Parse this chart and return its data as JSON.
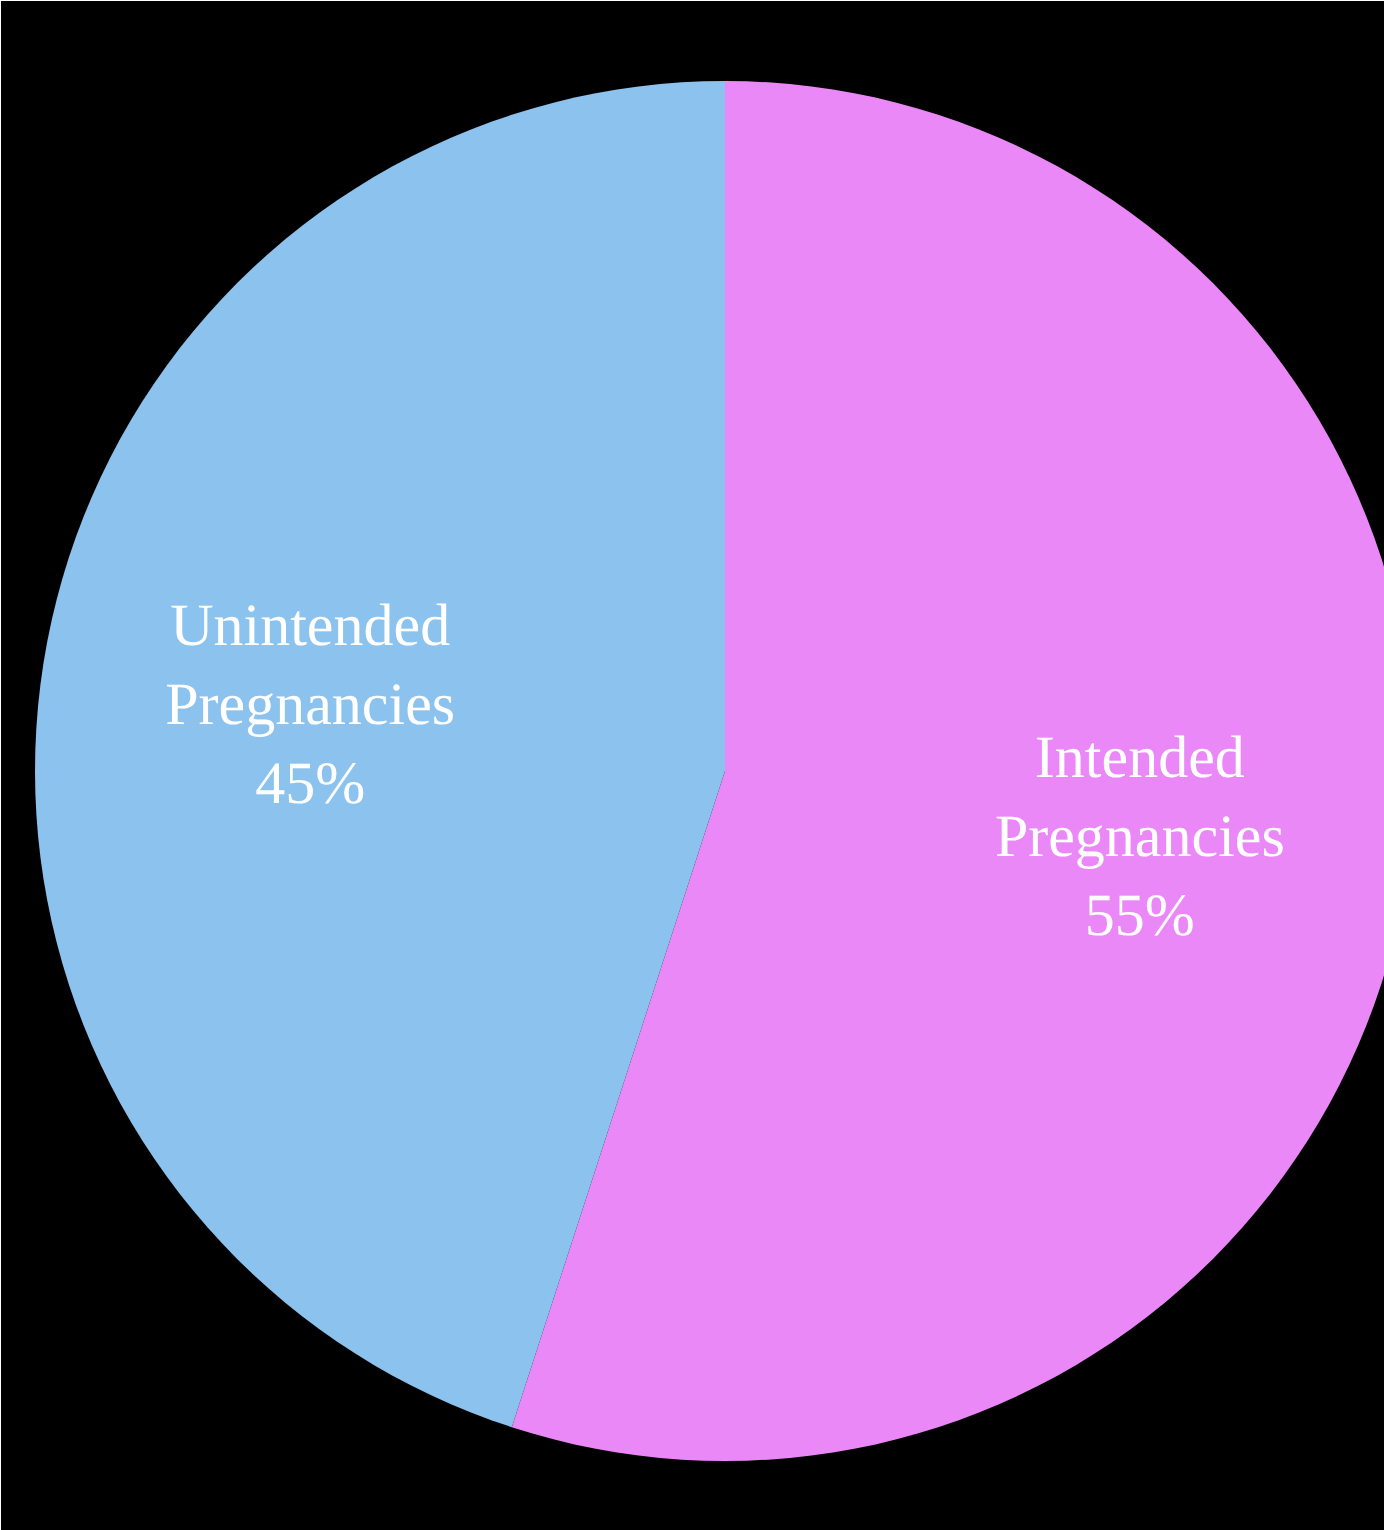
{
  "chart_data": {
    "type": "pie",
    "categories": [
      "Intended Pregnancies",
      "Unintended Pregnancies"
    ],
    "values": [
      55,
      45
    ],
    "colors": [
      "#ea88f8",
      "#8cc2ee"
    ],
    "value_labels": [
      "55%",
      "45%"
    ]
  }
}
